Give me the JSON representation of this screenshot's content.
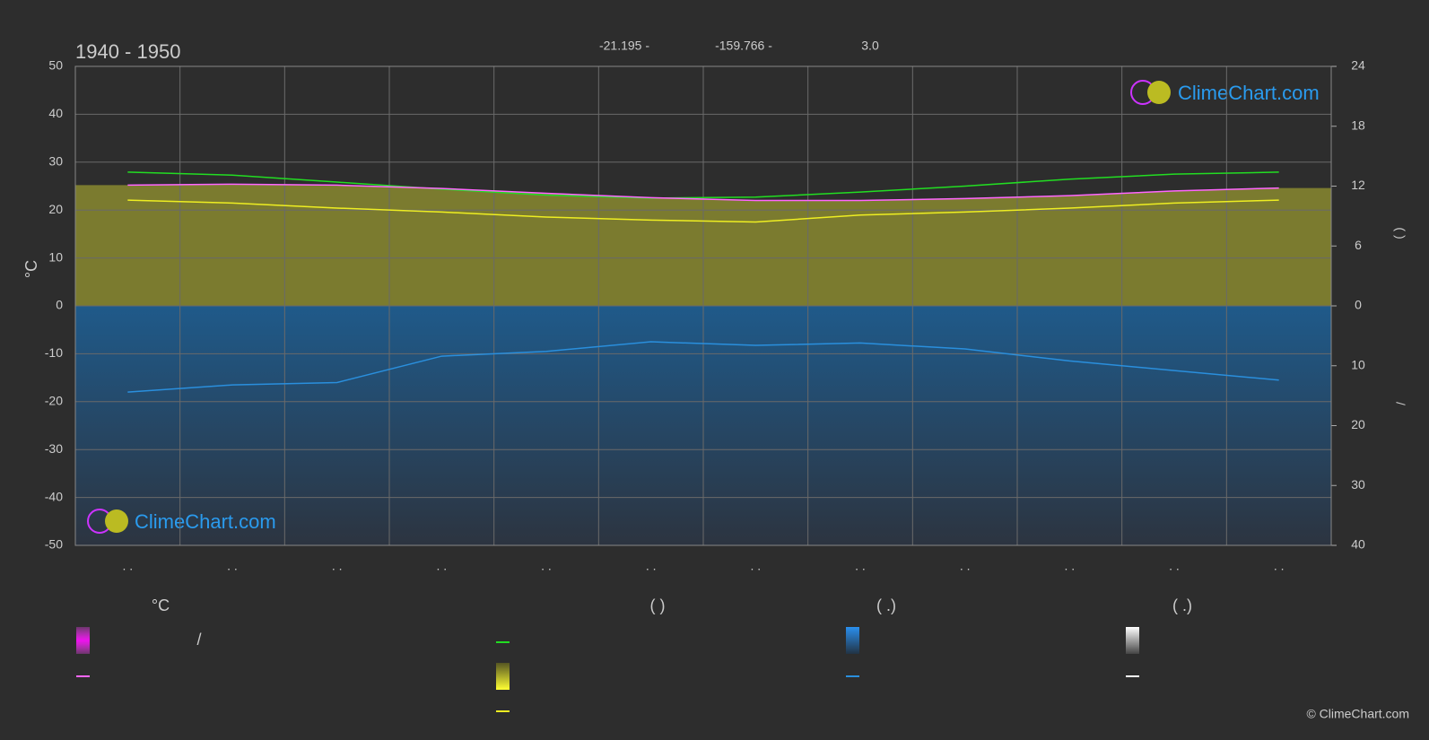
{
  "chart_data": {
    "type": "line",
    "title": "1940 - 1950",
    "header": [
      "-21.195 -",
      "-159.766 -",
      "3.0"
    ],
    "y_label": "°C",
    "y2_label": "(   )",
    "y3_label": "/",
    "categories": [
      ". .",
      ". .",
      ". .",
      ". .",
      ". .",
      ". .",
      ". .",
      ". .",
      ". .",
      ". .",
      ". .",
      ". ."
    ],
    "ylim": [
      -50,
      50
    ],
    "yticks": [
      50,
      40,
      30,
      20,
      10,
      0,
      -10,
      -20,
      -30,
      -40,
      -50
    ],
    "y2lim": [
      -24,
      24
    ],
    "y2ticks": [
      24,
      18,
      12,
      6,
      0
    ],
    "y3lim": [
      40,
      -40
    ],
    "y3ticks": [
      10,
      20,
      30,
      40
    ],
    "grid": true,
    "series": [
      {
        "color": "#22dd22",
        "axis": "y2",
        "values": [
          13.4,
          13.1,
          12.4,
          11.7,
          11.1,
          10.8,
          10.9,
          11.4,
          12.0,
          12.7,
          13.2,
          13.4
        ]
      },
      {
        "color": "#ff66ff",
        "values": [
          25.2,
          25.4,
          25.2,
          24.5,
          23.5,
          22.6,
          22.0,
          22.0,
          22.4,
          23.0,
          24.0,
          24.6
        ]
      },
      {
        "color": "#eeee22",
        "axis": "y2",
        "values": [
          10.6,
          10.3,
          9.8,
          9.4,
          8.9,
          8.6,
          8.4,
          9.1,
          9.4,
          9.8,
          10.3,
          10.6
        ]
      },
      {
        "color": "#2a8fdd",
        "axis": "y3",
        "values": [
          14.4,
          13.2,
          12.8,
          8.4,
          7.6,
          6.0,
          6.6,
          6.2,
          7.2,
          9.2,
          10.8,
          12.4
        ]
      }
    ],
    "legend_headers": [
      "°C",
      "(          )",
      "(   .)",
      "(   .)"
    ],
    "legend_text": "/",
    "logo": "ClimeChart.com",
    "copyright": "© ClimeChart.com"
  }
}
